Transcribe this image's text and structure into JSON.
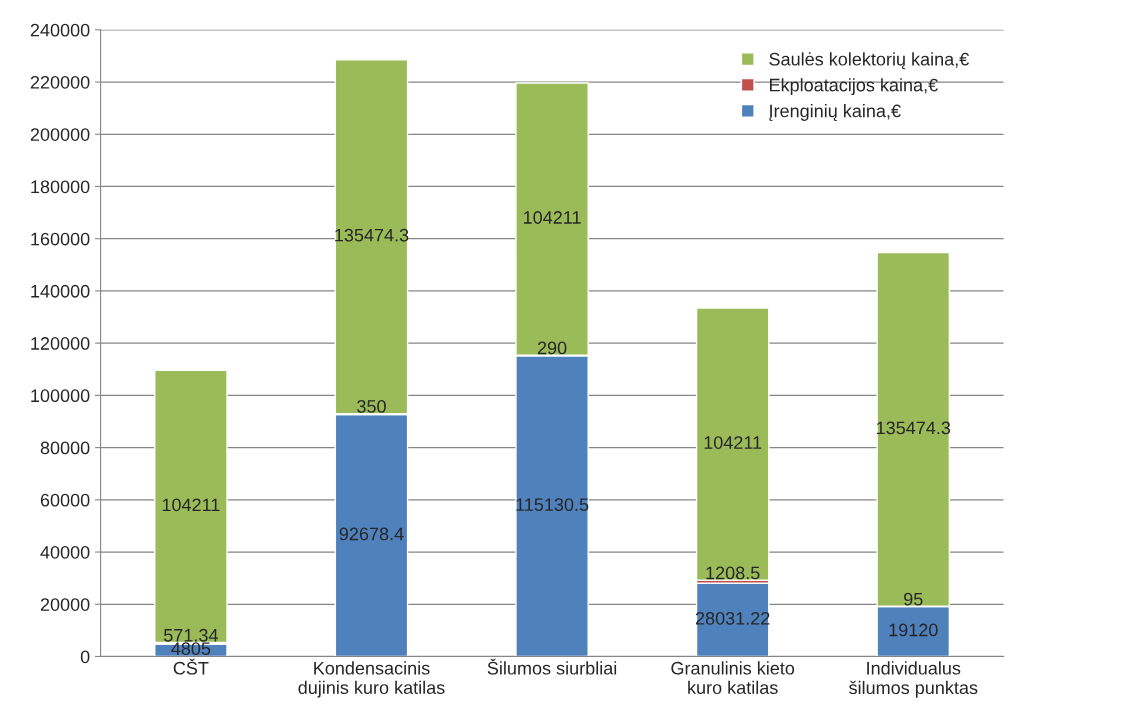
{
  "chart_data": {
    "type": "bar",
    "stacked": true,
    "categories": [
      "CŠT",
      "Kondensacinis\ndujinis kuro katilas",
      "Šilumos siurbliai",
      "Granulinis kieto\nkuro katilas",
      "Individualus\nšilumos punktas"
    ],
    "series": [
      {
        "name": "Įrenginių kaina,€",
        "color": "#4f81bd",
        "values": [
          4805,
          92678.4,
          115130.5,
          28031.22,
          19120
        ]
      },
      {
        "name": "Ekploatacijos kaina,€",
        "color": "#c0504d",
        "values": [
          571.34,
          350,
          290,
          1208.5,
          95
        ]
      },
      {
        "name": "Saulės kolektorių kaina,€",
        "color": "#9bbb59",
        "values": [
          104211,
          135474.3,
          104211,
          104211,
          135474.3
        ]
      }
    ],
    "ylim": [
      0,
      240000
    ],
    "yticks": [
      0,
      20000,
      40000,
      60000,
      80000,
      100000,
      120000,
      140000,
      160000,
      180000,
      200000,
      220000,
      240000
    ],
    "grid": "y",
    "legend": "top right",
    "data_labels": true
  }
}
